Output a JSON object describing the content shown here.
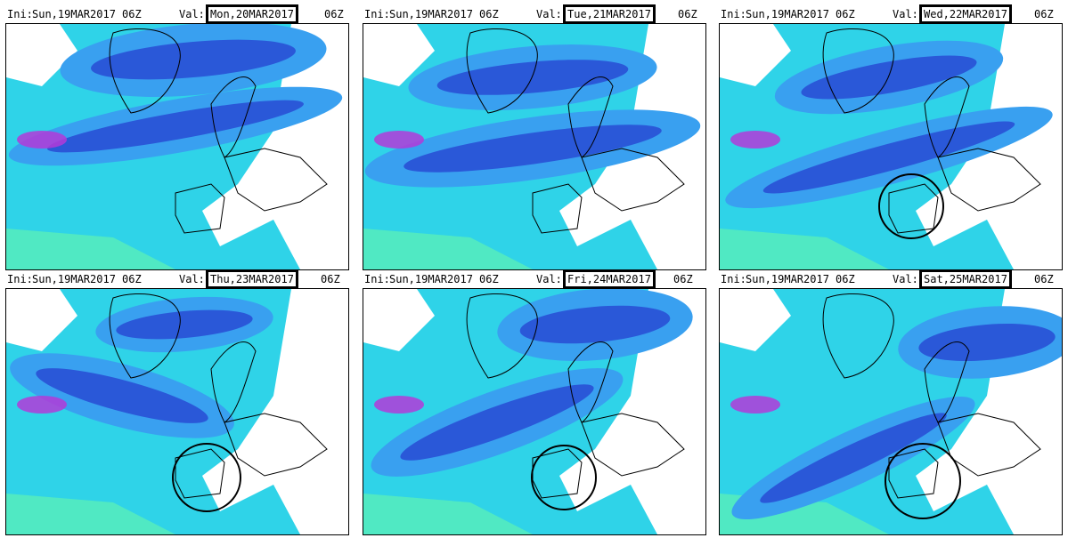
{
  "panels": [
    {
      "ini_label": "Ini:",
      "ini": "Sun,19MAR2017",
      "ini_hour": "06Z",
      "val_label": "Val:",
      "val": "Mon,20MAR2017",
      "val_hour": "06Z",
      "highlight": false
    },
    {
      "ini_label": "Ini:",
      "ini": "Sun,19MAR2017",
      "ini_hour": "06Z",
      "val_label": "Val:",
      "val": "Tue,21MAR2017",
      "val_hour": "06Z",
      "highlight": false
    },
    {
      "ini_label": "Ini:",
      "ini": "Sun,19MAR2017",
      "ini_hour": "06Z",
      "val_label": "Val:",
      "val": "Wed,22MAR2017",
      "val_hour": "06Z",
      "highlight": true
    },
    {
      "ini_label": "Ini:",
      "ini": "Sun,19MAR2017",
      "ini_hour": "06Z",
      "val_label": "Val:",
      "val": "Thu,23MAR2017",
      "val_hour": "06Z",
      "highlight": true
    },
    {
      "ini_label": "Ini:",
      "ini": "Sun,19MAR2017",
      "ini_hour": "06Z",
      "val_label": "Val:",
      "val": "Fri,24MAR2017",
      "val_hour": "06Z",
      "highlight": true
    },
    {
      "ini_label": "Ini:",
      "ini": "Sun,19MAR2017",
      "ini_hour": "06Z",
      "val_label": "Val:",
      "val": "Sat,25MAR2017",
      "val_hour": "06Z",
      "highlight": true
    }
  ],
  "colors": {
    "light": "#2fd3e8",
    "mid": "#39a0f0",
    "deep": "#2a58d8",
    "peak": "#b33ad8",
    "green": "#5ef2b4"
  }
}
